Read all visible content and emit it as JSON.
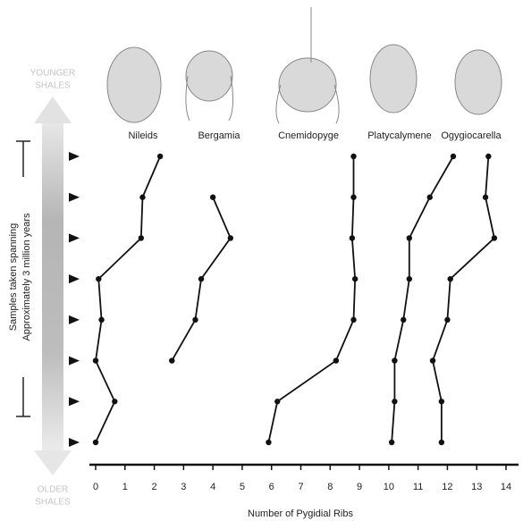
{
  "chart_data": {
    "type": "line",
    "x_label": "Number of Pygidial Ribs",
    "y_label": [
      "Samples taken spanning",
      "Approximately 3 million years"
    ],
    "top_label": [
      "YOUNGER",
      "SHALES"
    ],
    "bottom_label": [
      "OLDER",
      "SHALES"
    ],
    "categories": [
      null,
      null,
      null,
      null,
      null,
      null,
      null,
      null
    ],
    "xlim": [
      0,
      14
    ],
    "xticks": [
      0,
      1,
      2,
      3,
      4,
      5,
      6,
      7,
      8,
      9,
      10,
      11,
      12,
      13,
      14
    ],
    "series": [
      {
        "name": "Nileids",
        "color": "#111111",
        "values": [
          2.2,
          1.6,
          1.55,
          0.1,
          0.2,
          0,
          0.65,
          0
        ]
      },
      {
        "name": "Bergamia",
        "color": "#111111",
        "values": [
          null,
          4.0,
          4.6,
          3.6,
          3.4,
          2.6,
          null,
          null
        ]
      },
      {
        "name": "Cnemidopyge",
        "color": "#111111",
        "values": [
          8.8,
          8.8,
          8.75,
          8.85,
          8.8,
          8.2,
          6.2,
          5.9
        ]
      },
      {
        "name": "Platycalymene",
        "color": "#111111",
        "values": [
          12.2,
          11.4,
          10.7,
          10.7,
          10.5,
          10.2,
          10.2,
          10.1
        ]
      },
      {
        "name": "Ogygiocarella",
        "color": "#111111",
        "values": [
          13.4,
          13.3,
          13.6,
          12.1,
          12.0,
          11.5,
          11.8,
          11.8
        ]
      }
    ]
  }
}
